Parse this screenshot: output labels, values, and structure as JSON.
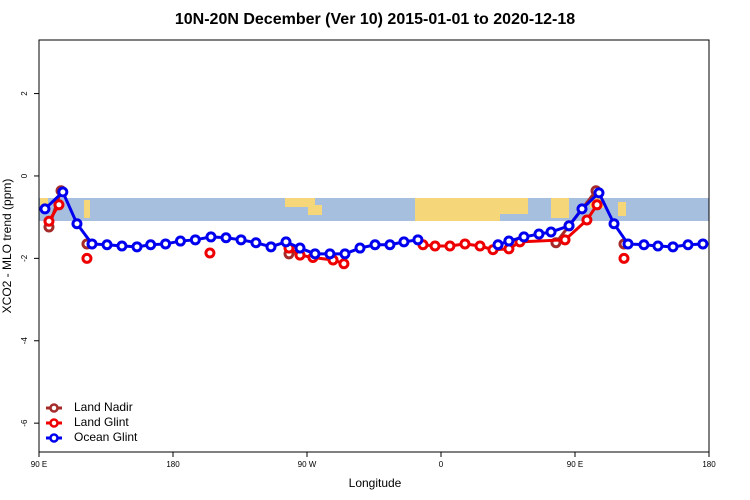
{
  "chart_data": {
    "type": "line",
    "title": "10N-20N December (Ver 10)   2015-01-01 to 2020-12-18",
    "x_label": "Longitude",
    "y_label": "XCO2 - MLO trend (ppm)",
    "xlim": [
      90,
      540
    ],
    "ylim": [
      -6.7,
      3.3
    ],
    "xticks": [
      {
        "value": 90,
        "label": "90 E"
      },
      180,
      {
        "value": 270,
        "label": "90 W"
      },
      {
        "value": 360,
        "label": "0"
      },
      {
        "value": 450,
        "label": "90 E"
      },
      {
        "value": 540,
        "label": "180"
      }
    ],
    "yticks": [
      -6,
      -4,
      -2,
      0,
      2
    ],
    "legend": "bottom-left",
    "series": [
      {
        "name": "Land Nadir",
        "color": "#a52a2a",
        "x": [
          96.7,
          104.8,
          null,
          122.2,
          null,
          257.9,
          null,
          437.2,
          446,
          464.1,
          null,
          482.9
        ],
        "values": [
          -1.24,
          -0.36,
          null,
          -1.65,
          null,
          -1.89,
          null,
          -1.62,
          -1.21,
          -0.36,
          null,
          -1.65
        ]
      },
      {
        "name": "Land Glint",
        "color": "#ee0000",
        "x": [
          96.7,
          103.4,
          null,
          122.2,
          null,
          204.8,
          null,
          257.9,
          265.3,
          274,
          287.5,
          294.8,
          null,
          347.9,
          356,
          366,
          376.1,
          386.2,
          394.9,
          405.6,
          413,
          443.3,
          458,
          464.8,
          null,
          482.9
        ],
        "values": [
          -1.1,
          -0.7,
          null,
          -2.0,
          null,
          -1.87,
          null,
          -1.75,
          -1.92,
          -1.98,
          -2.04,
          -2.13,
          null,
          -1.67,
          -1.7,
          -1.7,
          -1.65,
          -1.7,
          -1.79,
          -1.77,
          -1.6,
          -1.55,
          -1.07,
          -0.7,
          null,
          -2.0
        ]
      },
      {
        "name": "Ocean Glint",
        "color": "#0000ee",
        "x": [
          94,
          106,
          115.5,
          125.6,
          135.7,
          145.7,
          155.8,
          165,
          175,
          185,
          195,
          205.5,
          215.6,
          225.7,
          235.7,
          245.8,
          255.9,
          265.3,
          275.4,
          285.4,
          295.5,
          305.6,
          315.7,
          325.7,
          335.1,
          344.5,
          null,
          398.3,
          405.6,
          415.7,
          425.8,
          433.9,
          446,
          454.7,
          466.1,
          476.2,
          485.6,
          496.3,
          505.7,
          515.8,
          525.9,
          535.9
        ],
        "values": [
          -0.8,
          -0.39,
          -1.16,
          -1.65,
          -1.67,
          -1.7,
          -1.72,
          -1.67,
          -1.65,
          -1.58,
          -1.55,
          -1.48,
          -1.5,
          -1.55,
          -1.62,
          -1.72,
          -1.6,
          -1.75,
          -1.89,
          -1.89,
          -1.89,
          -1.75,
          -1.67,
          -1.67,
          -1.6,
          -1.55,
          null,
          -1.67,
          -1.58,
          -1.48,
          -1.41,
          -1.36,
          -1.21,
          -0.8,
          -0.41,
          -1.16,
          -1.65,
          -1.67,
          -1.7,
          -1.72,
          -1.67,
          -1.65
        ]
      }
    ]
  }
}
